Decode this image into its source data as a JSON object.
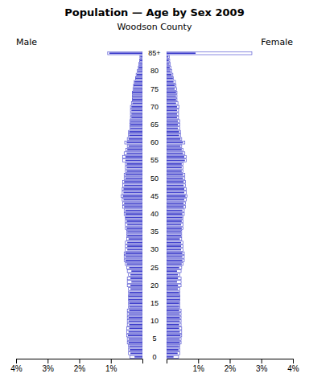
{
  "chart_data": {
    "type": "bar",
    "orientation": "horizontal",
    "title": "Population — Age by Sex 2009",
    "subtitle": "Woodson County",
    "color": "#4040cc",
    "categories": [
      "0",
      null,
      null,
      null,
      null,
      "5",
      null,
      null,
      null,
      null,
      "10",
      null,
      null,
      null,
      null,
      "15",
      null,
      null,
      null,
      null,
      "20",
      null,
      null,
      null,
      null,
      "25",
      null,
      null,
      null,
      null,
      "30",
      null,
      null,
      null,
      null,
      "35",
      null,
      null,
      null,
      null,
      "40",
      null,
      null,
      null,
      null,
      "45",
      null,
      null,
      null,
      null,
      "50",
      null,
      null,
      null,
      null,
      "55",
      null,
      null,
      null,
      null,
      "60",
      null,
      null,
      null,
      null,
      "65",
      null,
      null,
      null,
      null,
      "70",
      null,
      null,
      null,
      null,
      "75",
      null,
      null,
      null,
      null,
      "80",
      null,
      null,
      null,
      null,
      "85+"
    ],
    "xlim": [
      0,
      4.0
    ],
    "xticks": [
      {
        "value": 1,
        "label": "1%"
      },
      {
        "value": 2,
        "label": "2%"
      },
      {
        "value": 3,
        "label": "3%"
      },
      {
        "value": 4,
        "label": "4%"
      }
    ],
    "series": [
      {
        "name": "Male",
        "values": [
          0.25,
          0.38,
          0.4,
          0.42,
          0.44,
          0.44,
          0.46,
          0.44,
          0.42,
          0.42,
          0.44,
          0.44,
          0.44,
          0.42,
          0.42,
          0.42,
          0.44,
          0.44,
          0.42,
          0.38,
          0.38,
          0.35,
          0.38,
          0.38,
          0.35,
          0.42,
          0.5,
          0.54,
          0.54,
          0.54,
          0.48,
          0.48,
          0.48,
          0.44,
          0.48,
          0.48,
          0.5,
          0.48,
          0.5,
          0.54,
          0.54,
          0.54,
          0.58,
          0.58,
          0.6,
          0.62,
          0.6,
          0.6,
          0.58,
          0.58,
          0.54,
          0.54,
          0.5,
          0.5,
          0.5,
          0.54,
          0.54,
          0.5,
          0.48,
          0.44,
          0.5,
          0.44,
          0.42,
          0.42,
          0.38,
          0.38,
          0.38,
          0.35,
          0.35,
          0.35,
          0.35,
          0.32,
          0.32,
          0.32,
          0.32,
          0.28,
          0.28,
          0.25,
          0.22,
          0.18,
          0.15,
          0.12,
          0.1,
          0.08,
          0.07,
          1.05
        ],
        "reference": [
          0.4,
          0.44,
          0.44,
          0.44,
          0.48,
          0.48,
          0.5,
          0.5,
          0.5,
          0.48,
          0.48,
          0.48,
          0.48,
          0.48,
          0.44,
          0.44,
          0.44,
          0.44,
          0.44,
          0.44,
          0.48,
          0.48,
          0.48,
          0.44,
          0.48,
          0.5,
          0.54,
          0.58,
          0.58,
          0.58,
          0.54,
          0.54,
          0.54,
          0.5,
          0.5,
          0.5,
          0.54,
          0.54,
          0.54,
          0.54,
          0.58,
          0.58,
          0.62,
          0.62,
          0.64,
          0.68,
          0.64,
          0.64,
          0.62,
          0.62,
          0.58,
          0.58,
          0.54,
          0.54,
          0.54,
          0.62,
          0.62,
          0.58,
          0.52,
          0.48,
          0.56,
          0.48,
          0.44,
          0.44,
          0.4,
          0.4,
          0.4,
          0.38,
          0.38,
          0.38,
          0.38,
          0.35,
          0.32,
          0.32,
          0.32,
          0.3,
          0.28,
          0.26,
          0.22,
          0.2,
          0.16,
          0.13,
          0.11,
          0.09,
          0.08,
          1.1
        ]
      },
      {
        "name": "Female",
        "values": [
          0.22,
          0.35,
          0.38,
          0.4,
          0.42,
          0.42,
          0.44,
          0.42,
          0.4,
          0.4,
          0.42,
          0.42,
          0.42,
          0.4,
          0.4,
          0.4,
          0.42,
          0.42,
          0.4,
          0.36,
          0.36,
          0.33,
          0.36,
          0.36,
          0.33,
          0.4,
          0.48,
          0.5,
          0.5,
          0.5,
          0.46,
          0.46,
          0.46,
          0.42,
          0.46,
          0.46,
          0.48,
          0.46,
          0.48,
          0.5,
          0.5,
          0.5,
          0.54,
          0.54,
          0.56,
          0.6,
          0.56,
          0.56,
          0.54,
          0.54,
          0.52,
          0.52,
          0.48,
          0.48,
          0.48,
          0.58,
          0.56,
          0.52,
          0.48,
          0.44,
          0.52,
          0.44,
          0.4,
          0.4,
          0.36,
          0.36,
          0.36,
          0.33,
          0.33,
          0.33,
          0.33,
          0.3,
          0.3,
          0.3,
          0.3,
          0.26,
          0.26,
          0.22,
          0.2,
          0.16,
          0.13,
          0.1,
          0.09,
          0.07,
          0.06,
          0.92
        ],
        "reference": [
          0.38,
          0.42,
          0.42,
          0.42,
          0.46,
          0.46,
          0.48,
          0.48,
          0.48,
          0.46,
          0.46,
          0.46,
          0.46,
          0.46,
          0.42,
          0.42,
          0.42,
          0.42,
          0.42,
          0.42,
          0.46,
          0.46,
          0.46,
          0.42,
          0.46,
          0.48,
          0.52,
          0.56,
          0.56,
          0.56,
          0.52,
          0.52,
          0.52,
          0.48,
          0.48,
          0.48,
          0.52,
          0.52,
          0.52,
          0.52,
          0.56,
          0.56,
          0.6,
          0.6,
          0.62,
          0.65,
          0.62,
          0.62,
          0.6,
          0.6,
          0.58,
          0.58,
          0.52,
          0.52,
          0.52,
          0.62,
          0.62,
          0.58,
          0.52,
          0.48,
          0.58,
          0.48,
          0.44,
          0.44,
          0.42,
          0.42,
          0.42,
          0.38,
          0.38,
          0.38,
          0.4,
          0.36,
          0.33,
          0.33,
          0.33,
          0.32,
          0.3,
          0.28,
          0.22,
          0.2,
          0.17,
          0.14,
          0.12,
          0.1,
          0.09,
          2.7
        ]
      }
    ]
  }
}
